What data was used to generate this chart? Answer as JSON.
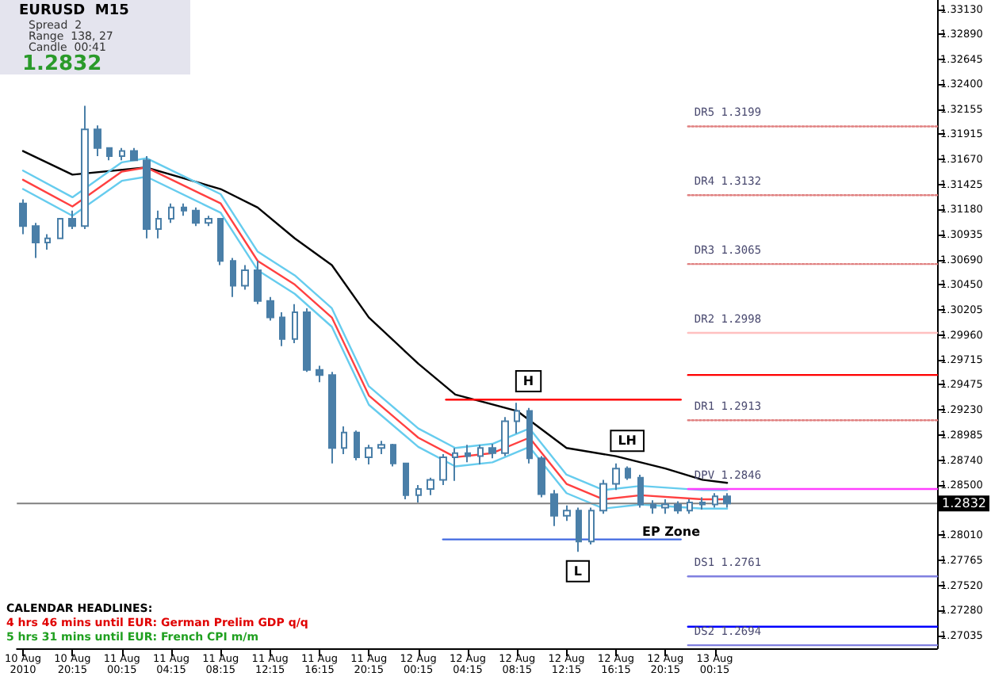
{
  "chart_data": {
    "type": "candlestick",
    "title": "EURUSD  M15",
    "color": "#4a7fa8",
    "marker": "none",
    "legend": false,
    "grid": false,
    "xlim": [
      "2010-08-10T15:45",
      "2010-08-13T18:15"
    ],
    "xticks": [
      {
        "value": "2010-08-10T16:15",
        "label": "10 Aug 2010"
      },
      {
        "value": "2010-08-10T20:15",
        "label": "10 Aug 20:15"
      },
      {
        "value": "2010-08-11T00:15",
        "label": "11 Aug 00:15"
      },
      {
        "value": "2010-08-11T04:15",
        "label": "11 Aug 04:15"
      },
      {
        "value": "2010-08-11T08:15",
        "label": "11 Aug 08:15"
      },
      {
        "value": "2010-08-11T12:15",
        "label": "11 Aug 12:15"
      },
      {
        "value": "2010-08-11T16:15",
        "label": "11 Aug 16:15"
      },
      {
        "value": "2010-08-11T20:15",
        "label": "11 Aug 20:15"
      },
      {
        "value": "2010-08-12T00:15",
        "label": "12 Aug 00:15"
      },
      {
        "value": "2010-08-12T04:15",
        "label": "12 Aug 04:15"
      },
      {
        "value": "2010-08-12T08:15",
        "label": "12 Aug 08:15"
      },
      {
        "value": "2010-08-12T12:15",
        "label": "12 Aug 12:15"
      },
      {
        "value": "2010-08-12T16:15",
        "label": "12 Aug 16:15"
      },
      {
        "value": "2010-08-12T20:15",
        "label": "12 Aug 20:15"
      },
      {
        "value": "2010-08-13T00:15",
        "label": "13 Aug 00:15"
      }
    ],
    "ylim": [
      1.2691,
      1.3322
    ],
    "yticks": [
      {
        "value": 1.3313,
        "label": "1.33130"
      },
      {
        "value": 1.3289,
        "label": "1.32890"
      },
      {
        "value": 1.32645,
        "label": "1.32645"
      },
      {
        "value": 1.324,
        "label": "1.32400"
      },
      {
        "value": 1.32155,
        "label": "1.32155"
      },
      {
        "value": 1.31915,
        "label": "1.31915"
      },
      {
        "value": 1.3167,
        "label": "1.31670"
      },
      {
        "value": 1.31425,
        "label": "1.31425"
      },
      {
        "value": 1.3118,
        "label": "1.31180"
      },
      {
        "value": 1.30935,
        "label": "1.30935"
      },
      {
        "value": 1.3069,
        "label": "1.30690"
      },
      {
        "value": 1.3045,
        "label": "1.30450"
      },
      {
        "value": 1.30205,
        "label": "1.30205"
      },
      {
        "value": 1.2996,
        "label": "1.29960"
      },
      {
        "value": 1.29715,
        "label": "1.29715"
      },
      {
        "value": 1.29475,
        "label": "1.29475"
      },
      {
        "value": 1.2923,
        "label": "1.29230"
      },
      {
        "value": 1.28985,
        "label": "1.28985"
      },
      {
        "value": 1.2874,
        "label": "1.28740"
      },
      {
        "value": 1.285,
        "label": "1.28500"
      },
      {
        "value": 1.2801,
        "label": "1.28010"
      },
      {
        "value": 1.27765,
        "label": "1.27765"
      },
      {
        "value": 1.2752,
        "label": "1.27520"
      },
      {
        "value": 1.2728,
        "label": "1.27280"
      },
      {
        "value": 1.27035,
        "label": "1.27035"
      }
    ],
    "x": [
      "2010-08-10T16:15",
      "2010-08-10T17:15",
      "2010-08-10T18:15",
      "2010-08-10T19:15",
      "2010-08-10T20:15",
      "2010-08-10T21:15",
      "2010-08-10T22:15",
      "2010-08-10T23:15",
      "2010-08-11T00:15",
      "2010-08-11T01:15",
      "2010-08-11T02:15",
      "2010-08-11T03:15",
      "2010-08-11T04:15",
      "2010-08-11T05:15",
      "2010-08-11T06:15",
      "2010-08-11T07:15",
      "2010-08-11T08:15",
      "2010-08-11T09:15",
      "2010-08-11T10:15",
      "2010-08-11T11:15",
      "2010-08-11T12:15",
      "2010-08-11T13:15",
      "2010-08-11T14:15",
      "2010-08-11T15:15",
      "2010-08-11T16:15",
      "2010-08-11T17:15",
      "2010-08-11T18:15",
      "2010-08-11T19:15",
      "2010-08-11T20:15",
      "2010-08-11T21:15",
      "2010-08-11T22:15",
      "2010-08-11T23:15",
      "2010-08-12T00:15",
      "2010-08-12T01:15",
      "2010-08-12T02:15",
      "2010-08-12T03:15",
      "2010-08-12T04:15",
      "2010-08-12T05:15",
      "2010-08-12T06:15",
      "2010-08-12T07:15",
      "2010-08-12T08:15",
      "2010-08-12T09:15",
      "2010-08-12T10:15",
      "2010-08-12T11:15",
      "2010-08-12T12:15",
      "2010-08-12T13:15",
      "2010-08-12T14:15",
      "2010-08-12T15:15",
      "2010-08-12T16:15",
      "2010-08-12T17:15",
      "2010-08-12T18:15",
      "2010-08-12T19:15",
      "2010-08-12T20:15",
      "2010-08-12T21:15",
      "2010-08-12T22:15",
      "2010-08-12T23:15",
      "2010-08-13T00:15",
      "2010-08-13T01:15"
    ],
    "ohlc": [
      [
        1.3124,
        1.3128,
        1.3094,
        1.3102
      ],
      [
        1.3102,
        1.3105,
        1.3071,
        1.3086
      ],
      [
        1.3086,
        1.3094,
        1.3079,
        1.309
      ],
      [
        1.309,
        1.3109,
        1.309,
        1.3109
      ],
      [
        1.3109,
        1.3117,
        1.3099,
        1.3102
      ],
      [
        1.3102,
        1.3219,
        1.3099,
        1.3196
      ],
      [
        1.3196,
        1.32,
        1.317,
        1.3178
      ],
      [
        1.3178,
        1.3178,
        1.3166,
        1.317
      ],
      [
        1.317,
        1.3178,
        1.3166,
        1.3175
      ],
      [
        1.3175,
        1.3178,
        1.3166,
        1.3166
      ],
      [
        1.3166,
        1.317,
        1.309,
        1.3099
      ],
      [
        1.3099,
        1.3117,
        1.309,
        1.3109
      ],
      [
        1.3109,
        1.3124,
        1.3105,
        1.312
      ],
      [
        1.312,
        1.3124,
        1.3112,
        1.3117
      ],
      [
        1.3117,
        1.312,
        1.3102,
        1.3105
      ],
      [
        1.3105,
        1.3112,
        1.3102,
        1.3109
      ],
      [
        1.3109,
        1.3109,
        1.3064,
        1.3068
      ],
      [
        1.3068,
        1.3071,
        1.3033,
        1.3044
      ],
      [
        1.3044,
        1.3064,
        1.304,
        1.3059
      ],
      [
        1.3059,
        1.3068,
        1.3026,
        1.3029
      ],
      [
        1.3029,
        1.3033,
        1.301,
        1.3013
      ],
      [
        1.3013,
        1.3018,
        1.2985,
        1.2992
      ],
      [
        1.2992,
        1.3026,
        1.2988,
        1.3018
      ],
      [
        1.3018,
        1.3022,
        1.296,
        1.2962
      ],
      [
        1.2962,
        1.2966,
        1.295,
        1.2957
      ],
      [
        1.2957,
        1.296,
        1.2871,
        1.2886
      ],
      [
        1.2886,
        1.2907,
        1.288,
        1.2901
      ],
      [
        1.2901,
        1.2903,
        1.2874,
        1.2877
      ],
      [
        1.2877,
        1.2889,
        1.287,
        1.2886
      ],
      [
        1.2886,
        1.2893,
        1.288,
        1.2889
      ],
      [
        1.2889,
        1.289,
        1.2868,
        1.2871
      ],
      [
        1.2871,
        1.2871,
        1.2836,
        1.284
      ],
      [
        1.284,
        1.285,
        1.2833,
        1.2846
      ],
      [
        1.2846,
        1.2857,
        1.284,
        1.2855
      ],
      [
        1.2855,
        1.288,
        1.285,
        1.2877
      ],
      [
        1.2877,
        1.2886,
        1.2854,
        1.2881
      ],
      [
        1.2881,
        1.2889,
        1.2872,
        1.2878
      ],
      [
        1.2878,
        1.2889,
        1.287,
        1.2886
      ],
      [
        1.2886,
        1.289,
        1.2876,
        1.2881
      ],
      [
        1.2881,
        1.2916,
        1.2878,
        1.2912
      ],
      [
        1.2912,
        1.293,
        1.29,
        1.2922
      ],
      [
        1.2922,
        1.2925,
        1.2871,
        1.2876
      ],
      [
        1.2876,
        1.2878,
        1.2838,
        1.2841
      ],
      [
        1.2841,
        1.2845,
        1.281,
        1.282
      ],
      [
        1.282,
        1.283,
        1.2815,
        1.2825
      ],
      [
        1.2825,
        1.2828,
        1.2785,
        1.2795
      ],
      [
        1.2795,
        1.2828,
        1.2792,
        1.2825
      ],
      [
        1.2825,
        1.2855,
        1.2822,
        1.2851
      ],
      [
        1.2851,
        1.2871,
        1.2845,
        1.2866
      ],
      [
        1.2866,
        1.2868,
        1.2855,
        1.2857
      ],
      [
        1.2857,
        1.286,
        1.2828,
        1.2831
      ],
      [
        1.2831,
        1.2835,
        1.2822,
        1.2828
      ],
      [
        1.2828,
        1.2836,
        1.2822,
        1.2831
      ],
      [
        1.2831,
        1.2834,
        1.2822,
        1.2825
      ],
      [
        1.2825,
        1.2836,
        1.2822,
        1.2833
      ],
      [
        1.2833,
        1.2838,
        1.2826,
        1.2831
      ],
      [
        1.2831,
        1.2842,
        1.2828,
        1.2839
      ],
      [
        1.2839,
        1.2842,
        1.2828,
        1.2832
      ]
    ],
    "series": [
      {
        "type": "line",
        "color": "#000000",
        "x": [
          "2010-08-10T16:15",
          "2010-08-10T20:15",
          "2010-08-11T02:15",
          "2010-08-11T08:15",
          "2010-08-11T11:15",
          "2010-08-11T14:15",
          "2010-08-11T17:15",
          "2010-08-11T20:15",
          "2010-08-12T00:15",
          "2010-08-12T03:15",
          "2010-08-12T08:15",
          "2010-08-12T12:15",
          "2010-08-12T16:15",
          "2010-08-12T20:15",
          "2010-08-12T23:15",
          "2010-08-13T01:15"
        ],
        "values": [
          1.3175,
          1.3152,
          1.3159,
          1.3138,
          1.312,
          1.309,
          1.3064,
          1.3013,
          1.2968,
          1.2938,
          1.2922,
          1.2886,
          1.2878,
          1.2866,
          1.2855,
          1.2852
        ]
      },
      {
        "type": "line",
        "color": "#66ccee",
        "x": [
          "2010-08-10T16:15",
          "2010-08-10T20:15",
          "2010-08-11T00:15",
          "2010-08-11T02:15",
          "2010-08-11T08:15",
          "2010-08-11T11:15",
          "2010-08-11T14:15",
          "2010-08-11T17:15",
          "2010-08-11T20:15",
          "2010-08-12T00:15",
          "2010-08-12T03:15",
          "2010-08-12T06:15",
          "2010-08-12T09:15",
          "2010-08-12T12:15",
          "2010-08-12T15:15",
          "2010-08-12T18:15",
          "2010-08-12T23:15",
          "2010-08-13T01:15"
        ],
        "values": [
          1.3156,
          1.313,
          1.3164,
          1.3168,
          1.3133,
          1.3077,
          1.3054,
          1.3022,
          1.2946,
          1.2905,
          1.2886,
          1.289,
          1.2905,
          1.286,
          1.2845,
          1.2849,
          1.2845,
          1.2845
        ]
      },
      {
        "type": "line",
        "color": "#ff4040",
        "x": [
          "2010-08-10T16:15",
          "2010-08-10T20:15",
          "2010-08-11T00:15",
          "2010-08-11T02:15",
          "2010-08-11T08:15",
          "2010-08-11T11:15",
          "2010-08-11T14:15",
          "2010-08-11T17:15",
          "2010-08-11T20:15",
          "2010-08-12T00:15",
          "2010-08-12T03:15",
          "2010-08-12T06:15",
          "2010-08-12T09:15",
          "2010-08-12T12:15",
          "2010-08-12T15:15",
          "2010-08-12T18:15",
          "2010-08-12T23:15",
          "2010-08-13T01:15"
        ],
        "values": [
          1.3147,
          1.3121,
          1.3155,
          1.3159,
          1.3124,
          1.3068,
          1.3045,
          1.3013,
          1.2937,
          1.2896,
          1.2877,
          1.2881,
          1.2896,
          1.2851,
          1.2836,
          1.284,
          1.2836,
          1.2836
        ]
      },
      {
        "type": "line",
        "color": "#66ccee",
        "x": [
          "2010-08-10T16:15",
          "2010-08-10T20:15",
          "2010-08-11T00:15",
          "2010-08-11T02:15",
          "2010-08-11T08:15",
          "2010-08-11T11:15",
          "2010-08-11T14:15",
          "2010-08-11T17:15",
          "2010-08-11T20:15",
          "2010-08-12T00:15",
          "2010-08-12T03:15",
          "2010-08-12T06:15",
          "2010-08-12T09:15",
          "2010-08-12T12:15",
          "2010-08-12T15:15",
          "2010-08-12T18:15",
          "2010-08-12T23:15",
          "2010-08-13T01:15"
        ],
        "values": [
          1.3138,
          1.3112,
          1.3146,
          1.315,
          1.3115,
          1.3059,
          1.3036,
          1.3004,
          1.2928,
          1.2887,
          1.2868,
          1.2872,
          1.2887,
          1.2842,
          1.2827,
          1.2831,
          1.2827,
          1.2827
        ]
      },
      {
        "type": "line",
        "color": "#ff0000",
        "x": [
          "2010-08-12T02:30",
          "2010-08-12T21:30"
        ],
        "values": [
          1.2933,
          1.2933
        ]
      },
      {
        "type": "line",
        "color": "#4169e1",
        "x": [
          "2010-08-12T02:15",
          "2010-08-12T21:30"
        ],
        "values": [
          1.2797,
          1.2797
        ]
      },
      {
        "type": "line",
        "name": "DR5 1.3199",
        "color": "#e08080",
        "line_style": "dotted",
        "x": [
          "2010-08-12T22:05",
          "2010-08-13T18:15"
        ],
        "values": [
          1.3199,
          1.3199
        ]
      },
      {
        "type": "line",
        "name": "DR4 1.3132",
        "color": "#e08080",
        "line_style": "dotted",
        "x": [
          "2010-08-12T22:05",
          "2010-08-13T18:15"
        ],
        "values": [
          1.3132,
          1.3132
        ]
      },
      {
        "type": "line",
        "name": "DR3 1.3065",
        "color": "#e08080",
        "line_style": "dotted",
        "x": [
          "2010-08-12T22:05",
          "2010-08-13T18:15"
        ],
        "values": [
          1.3065,
          1.3065
        ]
      },
      {
        "type": "line",
        "name": "DR2 1.2998",
        "color": "#ffc0c0",
        "x": [
          "2010-08-12T22:05",
          "2010-08-13T18:15"
        ],
        "values": [
          1.2998,
          1.2998
        ]
      },
      {
        "type": "line",
        "color": "#ff0000",
        "x": [
          "2010-08-12T22:05",
          "2010-08-13T18:15"
        ],
        "values": [
          1.2957,
          1.2957
        ]
      },
      {
        "type": "line",
        "name": "DR1 1.2913",
        "color": "#e08080",
        "line_style": "dotted",
        "x": [
          "2010-08-12T22:05",
          "2010-08-13T18:15"
        ],
        "values": [
          1.2913,
          1.2913
        ]
      },
      {
        "type": "line",
        "name": "DPV 1.2846",
        "color": "#ff40ff",
        "x": [
          "2010-08-12T22:05",
          "2010-08-13T18:15"
        ],
        "values": [
          1.2846,
          1.2846
        ]
      },
      {
        "type": "line",
        "name": "DS1 1.2761",
        "color": "#8080e0",
        "x": [
          "2010-08-12T22:05",
          "2010-08-13T18:15"
        ],
        "values": [
          1.2761,
          1.2761
        ]
      },
      {
        "type": "line",
        "color": "#0000ff",
        "x": [
          "2010-08-12T22:05",
          "2010-08-13T18:15"
        ],
        "values": [
          1.2712,
          1.2712
        ]
      },
      {
        "type": "line",
        "name": "DS2 1.2694",
        "color": "#8080e0",
        "x": [
          "2010-08-12T22:05",
          "2010-08-13T18:15"
        ],
        "values": [
          1.2694,
          1.2694
        ]
      }
    ],
    "ref_lines": [
      {
        "axis": "y",
        "value": 1.2832,
        "label": "1.2832",
        "color": "#808080"
      }
    ],
    "annotations": [
      "Spread  2",
      "Range  138, 27",
      "Candle  00:41",
      "1.2832",
      "CALENDAR HEADLINES:",
      "4 hrs 46 mins until EUR: German Prelim GDP q/q",
      "5 hrs 31 mins until EUR: French CPI m/m",
      "EP Zone",
      {
        "text": "H",
        "x": "2010-08-12T09:10",
        "y": 1.2951
      },
      {
        "text": "LH",
        "x": "2010-08-12T17:10",
        "y": 1.2893
      },
      {
        "text": "L",
        "x": "2010-08-12T13:10",
        "y": 1.2766
      }
    ]
  }
}
